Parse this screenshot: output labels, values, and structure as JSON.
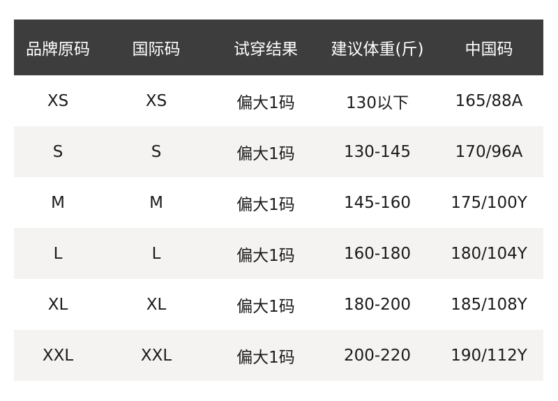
{
  "headers": [
    "品牌原码",
    "国际码",
    "试穿结果",
    "建议体重(斤)",
    "中国码"
  ],
  "rows": [
    [
      "XS",
      "XS",
      "偏大1码",
      "130以下",
      "165/88A"
    ],
    [
      "S",
      "S",
      "偏大1码",
      "130-145",
      "170/96A"
    ],
    [
      "M",
      "M",
      "偏大1码",
      "145-160",
      "175/100Y"
    ],
    [
      "L",
      "L",
      "偏大1码",
      "160-180",
      "180/104Y"
    ],
    [
      "XL",
      "XL",
      "偏大1码",
      "180-200",
      "185/108Y"
    ],
    [
      "XXL",
      "XXL",
      "偏大1码",
      "200-220",
      "190/112Y"
    ]
  ],
  "colors": {
    "header_bg": "#3d3d3d",
    "alt_row_bg": "#f4f3f1"
  }
}
